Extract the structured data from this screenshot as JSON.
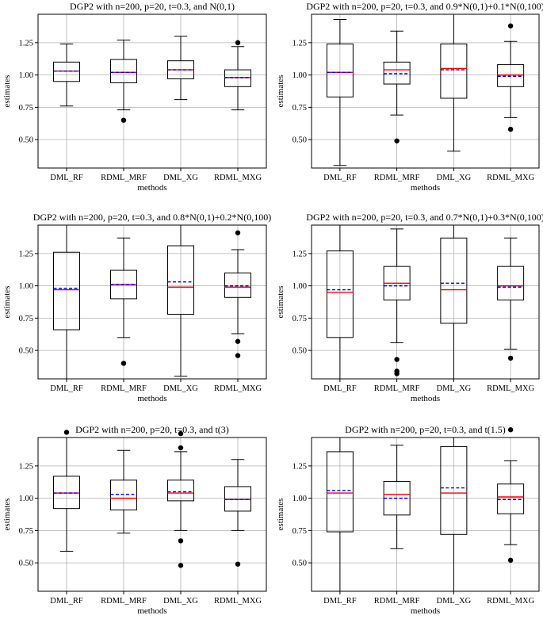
{
  "figure": {
    "colors": {
      "median": "#ff0000",
      "mean": "#0000ff",
      "box": "#000000",
      "grid": "#b0b0b0"
    }
  },
  "chart_data": [
    {
      "type": "boxplot",
      "title": "DGP2 with n=200, p=20, t=0.3, and N(0,1)",
      "xlabel": "methods",
      "ylabel": "estimates",
      "ylim": [
        0.28,
        1.47
      ],
      "yticks": [
        "0.50",
        "0.75",
        "1.00",
        "1.25"
      ],
      "grid": true,
      "categories": [
        "DML_RF",
        "RDML_MRF",
        "DML_XG",
        "RDML_MXG"
      ],
      "boxes": [
        {
          "whisker_low": 0.76,
          "q1": 0.95,
          "median": 1.03,
          "mean": 1.03,
          "q3": 1.1,
          "whisker_high": 1.24,
          "fliers": []
        },
        {
          "whisker_low": 0.73,
          "q1": 0.94,
          "median": 1.02,
          "mean": 1.02,
          "q3": 1.12,
          "whisker_high": 1.27,
          "fliers": [
            0.65
          ]
        },
        {
          "whisker_low": 0.81,
          "q1": 0.97,
          "median": 1.04,
          "mean": 1.04,
          "q3": 1.11,
          "whisker_high": 1.3,
          "fliers": []
        },
        {
          "whisker_low": 0.73,
          "q1": 0.91,
          "median": 0.98,
          "mean": 0.98,
          "q3": 1.04,
          "whisker_high": 1.22,
          "fliers": [
            1.25
          ]
        }
      ]
    },
    {
      "type": "boxplot",
      "title": "DGP2 with n=200, p=20, t=0.3, and 0.9*N(0,1)+0.1*N(0,100)",
      "xlabel": "methods",
      "ylabel": "estimates",
      "ylim": [
        0.28,
        1.47
      ],
      "yticks": [
        "0.50",
        "0.75",
        "1.00",
        "1.25"
      ],
      "grid": true,
      "categories": [
        "DML_RF",
        "RDML_MRF",
        "DML_XG",
        "RDML_MXG"
      ],
      "boxes": [
        {
          "whisker_low": 0.3,
          "q1": 0.83,
          "median": 1.02,
          "mean": 1.02,
          "q3": 1.24,
          "whisker_high": 1.43,
          "fliers": []
        },
        {
          "whisker_low": 0.69,
          "q1": 0.93,
          "median": 1.04,
          "mean": 1.01,
          "q3": 1.1,
          "whisker_high": 1.34,
          "fliers": [
            0.49
          ]
        },
        {
          "whisker_low": 0.41,
          "q1": 0.82,
          "median": 1.05,
          "mean": 1.04,
          "q3": 1.24,
          "whisker_high": 1.47,
          "fliers": []
        },
        {
          "whisker_low": 0.67,
          "q1": 0.91,
          "median": 1.0,
          "mean": 0.99,
          "q3": 1.08,
          "whisker_high": 1.26,
          "fliers": [
            1.38,
            0.58
          ]
        }
      ]
    },
    {
      "type": "boxplot",
      "title": "DGP2 with n=200, p=20, t=0.3, and 0.8*N(0,1)+0.2*N(0,100)",
      "xlabel": "methods",
      "ylabel": "estimates",
      "ylim": [
        0.28,
        1.47
      ],
      "yticks": [
        "0.50",
        "0.75",
        "1.00",
        "1.25"
      ],
      "grid": true,
      "categories": [
        "DML_RF",
        "RDML_MRF",
        "DML_XG",
        "RDML_MXG"
      ],
      "boxes": [
        {
          "whisker_low": 0.28,
          "q1": 0.66,
          "median": 0.97,
          "mean": 0.98,
          "q3": 1.26,
          "whisker_high": 1.47,
          "fliers": []
        },
        {
          "whisker_low": 0.6,
          "q1": 0.9,
          "median": 1.01,
          "mean": 1.01,
          "q3": 1.12,
          "whisker_high": 1.37,
          "fliers": [
            0.4
          ]
        },
        {
          "whisker_low": 0.3,
          "q1": 0.78,
          "median": 0.99,
          "mean": 1.03,
          "q3": 1.31,
          "whisker_high": 1.47,
          "fliers": []
        },
        {
          "whisker_low": 0.63,
          "q1": 0.91,
          "median": 0.99,
          "mean": 1.0,
          "q3": 1.1,
          "whisker_high": 1.28,
          "fliers": [
            1.41,
            0.57,
            0.46
          ]
        }
      ]
    },
    {
      "type": "boxplot",
      "title": "DGP2 with n=200, p=20, t=0.3, and 0.7*N(0,1)+0.3*N(0,100)",
      "xlabel": "methods",
      "ylabel": "estimates",
      "ylim": [
        0.28,
        1.47
      ],
      "yticks": [
        "0.50",
        "0.75",
        "1.00",
        "1.25"
      ],
      "grid": true,
      "categories": [
        "DML_RF",
        "RDML_MRF",
        "DML_XG",
        "RDML_MXG"
      ],
      "boxes": [
        {
          "whisker_low": 0.28,
          "q1": 0.6,
          "median": 0.95,
          "mean": 0.97,
          "q3": 1.27,
          "whisker_high": 1.47,
          "fliers": []
        },
        {
          "whisker_low": 0.56,
          "q1": 0.89,
          "median": 1.02,
          "mean": 1.0,
          "q3": 1.15,
          "whisker_high": 1.44,
          "fliers": [
            0.43,
            0.34,
            0.32
          ]
        },
        {
          "whisker_low": 0.28,
          "q1": 0.71,
          "median": 0.97,
          "mean": 1.02,
          "q3": 1.37,
          "whisker_high": 1.47,
          "fliers": []
        },
        {
          "whisker_low": 0.51,
          "q1": 0.89,
          "median": 1.0,
          "mean": 0.99,
          "q3": 1.15,
          "whisker_high": 1.37,
          "fliers": [
            0.44
          ]
        }
      ]
    },
    {
      "type": "boxplot",
      "title": "DGP2 with n=200, p=20, t=0.3, and t(3)",
      "xlabel": "methods",
      "ylabel": "estimates",
      "ylim": [
        0.28,
        1.47
      ],
      "yticks": [
        "0.50",
        "0.75",
        "1.00",
        "1.25"
      ],
      "grid": true,
      "categories": [
        "DML_RF",
        "RDML_MRF",
        "DML_XG",
        "RDML_MXG"
      ],
      "boxes": [
        {
          "whisker_low": 0.59,
          "q1": 0.92,
          "median": 1.04,
          "mean": 1.04,
          "q3": 1.17,
          "whisker_high": 1.47,
          "fliers": [
            1.51
          ]
        },
        {
          "whisker_low": 0.73,
          "q1": 0.91,
          "median": 1.0,
          "mean": 1.03,
          "q3": 1.14,
          "whisker_high": 1.37,
          "fliers": []
        },
        {
          "whisker_low": 0.75,
          "q1": 0.98,
          "median": 1.04,
          "mean": 1.05,
          "q3": 1.14,
          "whisker_high": 1.36,
          "fliers": [
            1.5,
            1.39,
            0.67,
            0.48
          ]
        },
        {
          "whisker_low": 0.75,
          "q1": 0.9,
          "median": 0.99,
          "mean": 0.99,
          "q3": 1.09,
          "whisker_high": 1.3,
          "fliers": [
            0.49
          ]
        }
      ]
    },
    {
      "type": "boxplot",
      "title": "DGP2 with n=200, p=20, t=0.3, and t(1.5)",
      "xlabel": "methods",
      "ylabel": "estimates",
      "ylim": [
        0.28,
        1.47
      ],
      "yticks": [
        "0.50",
        "0.75",
        "1.00",
        "1.25"
      ],
      "grid": true,
      "categories": [
        "DML_RF",
        "RDML_MRF",
        "DML_XG",
        "RDML_MXG"
      ],
      "boxes": [
        {
          "whisker_low": 0.28,
          "q1": 0.74,
          "median": 1.04,
          "mean": 1.06,
          "q3": 1.36,
          "whisker_high": 1.47,
          "fliers": []
        },
        {
          "whisker_low": 0.61,
          "q1": 0.87,
          "median": 1.03,
          "mean": 1.0,
          "q3": 1.13,
          "whisker_high": 1.41,
          "fliers": []
        },
        {
          "whisker_low": 0.28,
          "q1": 0.72,
          "median": 1.04,
          "mean": 1.08,
          "q3": 1.4,
          "whisker_high": 1.47,
          "fliers": []
        },
        {
          "whisker_low": 0.64,
          "q1": 0.88,
          "median": 1.01,
          "mean": 0.99,
          "q3": 1.11,
          "whisker_high": 1.29,
          "fliers": [
            1.53,
            0.52
          ]
        }
      ]
    }
  ]
}
